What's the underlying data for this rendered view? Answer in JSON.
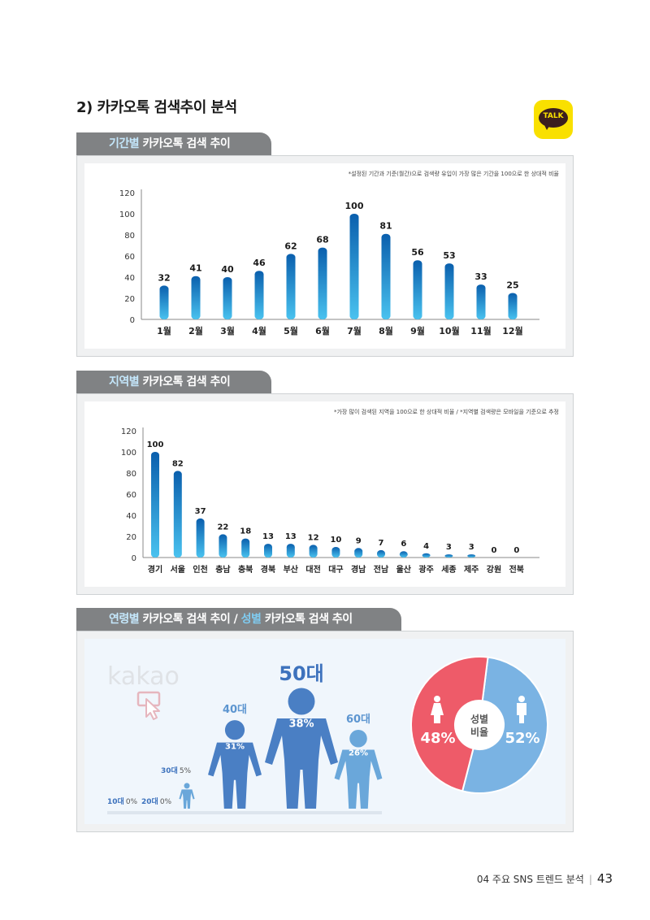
{
  "section_title": "2) 카카오톡 검색추이 분석",
  "talk_label": "TALK",
  "panel1": {
    "tab_accent": "기간별",
    "tab_rest": "카카오톡 검색 추이",
    "note": "*설정된 기간과 기준(월간)으로 검색량 유입이 가장 많은 기간을 100으로 한 상대적 비율"
  },
  "panel2": {
    "tab_accent": "지역별",
    "tab_rest": "카카오톡 검색 추이",
    "note": "*가장 많이 검색된 지역을 100으로 한 상대적 비율 / *지역별 검색량은 모바일을 기준으로 추정"
  },
  "panel3": {
    "tab_accent1": "연령별",
    "tab_rest1": "카카오톡 검색 추이 / ",
    "tab_accent2": "성별",
    "tab_rest2": "카카오톡 검색 추이",
    "kakao_watermark": "kakao",
    "donut_center_line1": "성별",
    "donut_center_line2": "비율"
  },
  "colors": {
    "bar_top": "#0a5fad",
    "bar_bottom": "#49c2ef",
    "female": "#ee5b69",
    "male": "#7ab3e3",
    "figure_blue": "#4a7fc4",
    "figure_light": "#6aa7da"
  },
  "chart_data": [
    {
      "type": "bar",
      "categories": [
        "1월",
        "2월",
        "3월",
        "4월",
        "5월",
        "6월",
        "7월",
        "8월",
        "9월",
        "10월",
        "11월",
        "12월"
      ],
      "values": [
        32,
        41,
        40,
        46,
        62,
        68,
        100,
        81,
        56,
        53,
        33,
        25
      ],
      "yticks": [
        0,
        20,
        40,
        60,
        80,
        100,
        120
      ],
      "ylim": [
        0,
        120
      ]
    },
    {
      "type": "bar",
      "categories": [
        "경기",
        "서울",
        "인천",
        "충남",
        "충북",
        "경북",
        "부산",
        "대전",
        "대구",
        "경남",
        "전남",
        "울산",
        "광주",
        "세종",
        "제주",
        "강원",
        "전북"
      ],
      "values": [
        100,
        82,
        37,
        22,
        18,
        13,
        13,
        12,
        10,
        9,
        7,
        6,
        4,
        3,
        3,
        0,
        0
      ],
      "yticks": [
        0,
        20,
        40,
        60,
        80,
        100,
        120
      ],
      "ylim": [
        0,
        120
      ]
    },
    {
      "type": "bar",
      "categories": [
        "10대",
        "20대",
        "30대",
        "40대",
        "50대",
        "60대"
      ],
      "labels": [
        "0%",
        "0%",
        "5%",
        "31%",
        "38%",
        "26%"
      ],
      "values": [
        0,
        0,
        5,
        31,
        38,
        26
      ]
    },
    {
      "type": "pie",
      "slices": [
        {
          "label": "48%",
          "value": 48,
          "icon": "female-icon"
        },
        {
          "label": "52%",
          "value": 52,
          "icon": "male-icon"
        }
      ]
    }
  ]
}
